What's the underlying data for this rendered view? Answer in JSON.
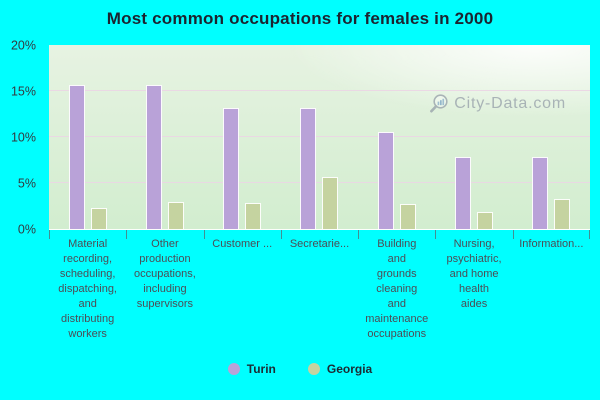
{
  "chart_data": {
    "type": "bar",
    "title": "Most common occupations for females in 2000",
    "categories": [
      "Material\nrecording,\nscheduling,\ndispatching,\nand\ndistributing\nworkers",
      "Other\nproduction\noccupations,\nincluding\nsupervisors",
      "Customer ...",
      "Secretarie...",
      "Building\nand\ngrounds\ncleaning\nand\nmaintenance\noccupations",
      "Nursing,\npsychiatric,\nand home\nhealth\naides",
      "Information..."
    ],
    "series": [
      {
        "name": "Turin",
        "color": "#b9a2d8",
        "values": [
          15.7,
          15.7,
          13.1,
          13.1,
          10.5,
          7.8,
          7.8
        ]
      },
      {
        "name": "Georgia",
        "color": "#c5d3a0",
        "values": [
          2.3,
          2.9,
          2.8,
          5.6,
          2.7,
          1.8,
          3.3
        ]
      }
    ],
    "xlabel": "",
    "ylabel": "",
    "ylim": [
      0,
      20
    ],
    "yticks": [
      {
        "value": 0,
        "label": "0%"
      },
      {
        "value": 5,
        "label": "5%"
      },
      {
        "value": 10,
        "label": "10%"
      },
      {
        "value": 15,
        "label": "15%"
      },
      {
        "value": 20,
        "label": "20%"
      }
    ],
    "grid": true,
    "legend_position": "bottom"
  },
  "watermark": {
    "text": "City-Data.com"
  },
  "colors": {
    "page_background": "#00ffff",
    "turin_bar": "#b9a2d8",
    "georgia_bar": "#c5d3a0",
    "gridline": "#ebd5e4",
    "title_text": "#1b2430",
    "axis_text": "#333a40",
    "category_text": "#4d4d55",
    "watermark_text": "#9aa4ac"
  }
}
